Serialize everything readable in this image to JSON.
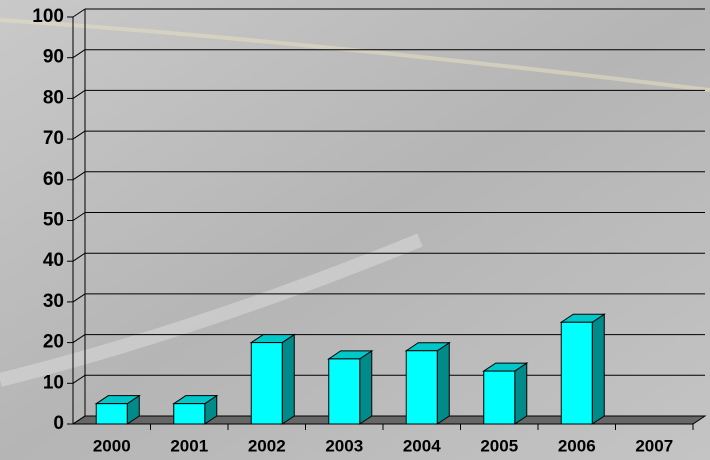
{
  "chart_data": {
    "type": "bar",
    "categories": [
      "2000",
      "2001",
      "2002",
      "2003",
      "2004",
      "2005",
      "2006",
      "2007"
    ],
    "values": [
      5,
      5,
      20,
      16,
      18,
      13,
      25,
      null
    ],
    "color": "#00ffff",
    "ylim": [
      0,
      100
    ],
    "yticks": [
      0,
      10,
      20,
      30,
      40,
      50,
      60,
      70,
      80,
      90,
      100
    ],
    "grid": true
  }
}
